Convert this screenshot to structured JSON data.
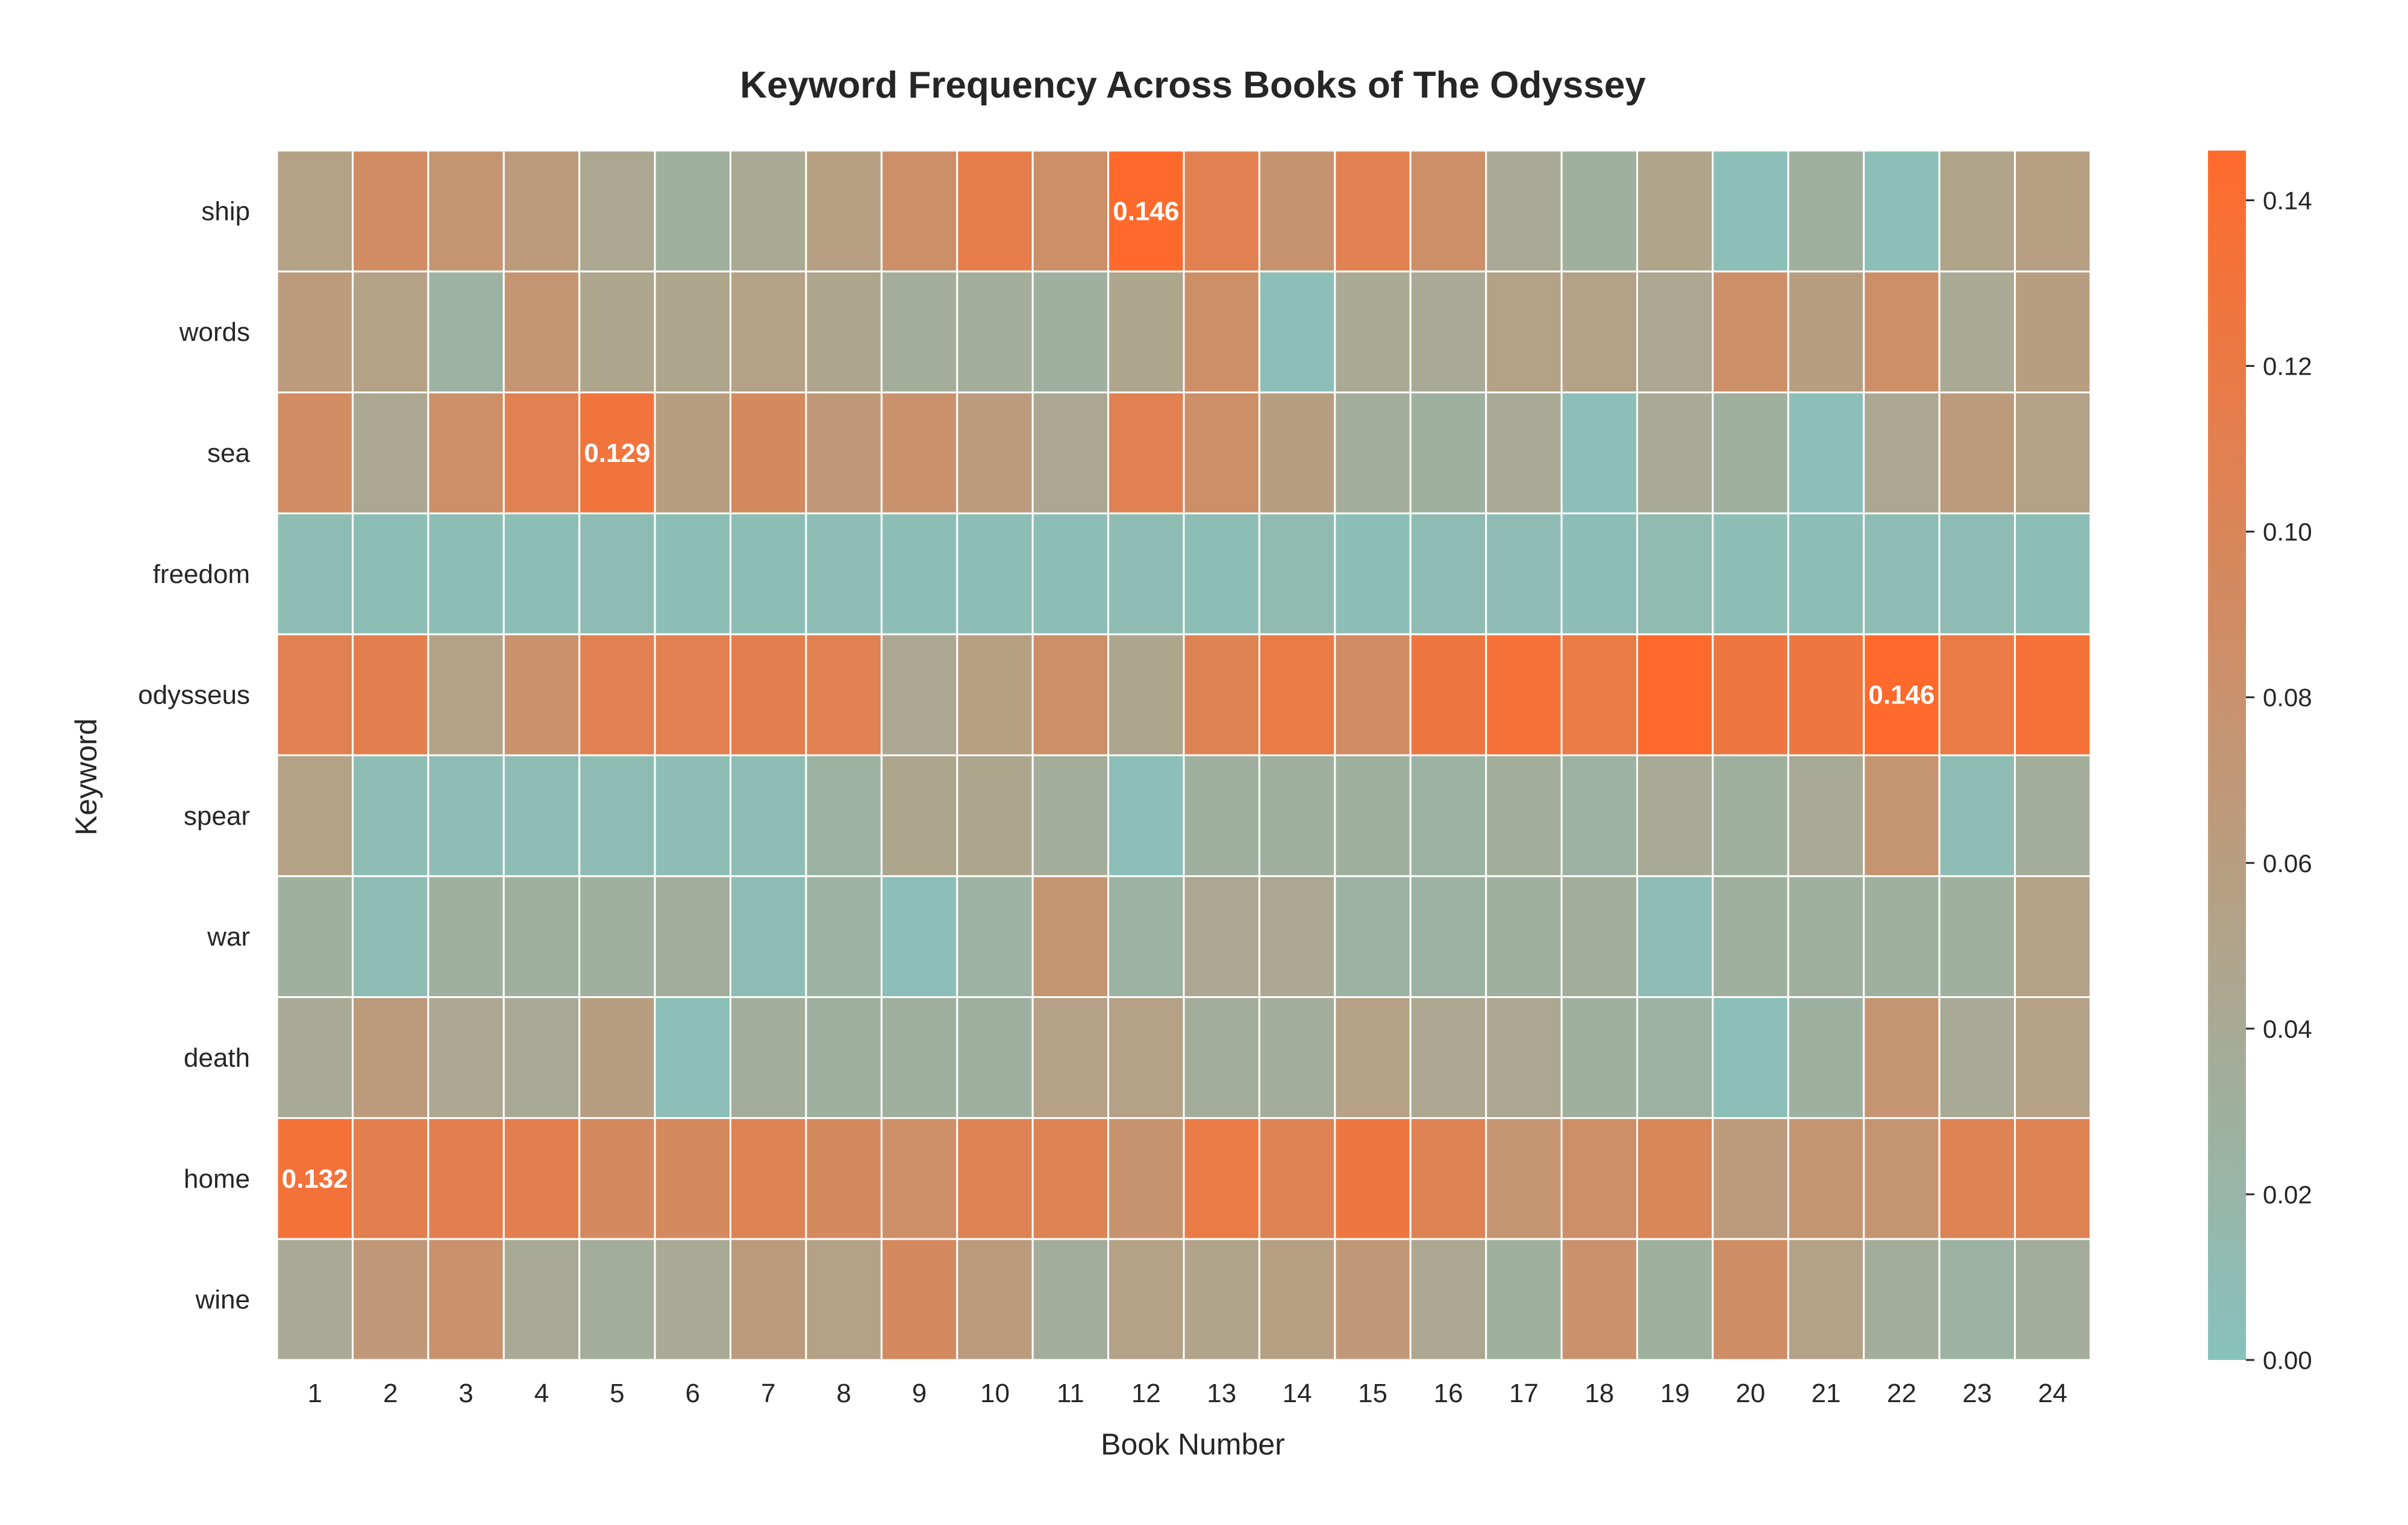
{
  "chart_data": {
    "type": "heatmap",
    "title": "Keyword Frequency Across Books of The Odyssey",
    "xlabel": "Book Number",
    "ylabel": "Keyword",
    "x_categories": [
      "1",
      "2",
      "3",
      "4",
      "5",
      "6",
      "7",
      "8",
      "9",
      "10",
      "11",
      "12",
      "13",
      "14",
      "15",
      "16",
      "17",
      "18",
      "19",
      "20",
      "21",
      "22",
      "23",
      "24"
    ],
    "y_categories": [
      "ship",
      "words",
      "sea",
      "freedom",
      "odysseus",
      "spear",
      "war",
      "death",
      "home",
      "wine"
    ],
    "values": [
      [
        0.055,
        0.09,
        0.075,
        0.065,
        0.045,
        0.03,
        0.042,
        0.058,
        0.085,
        0.115,
        0.085,
        0.146,
        0.11,
        0.078,
        0.11,
        0.085,
        0.04,
        0.03,
        0.05,
        0.005,
        0.03,
        0.005,
        0.05,
        0.058
      ],
      [
        0.065,
        0.055,
        0.025,
        0.075,
        0.048,
        0.048,
        0.055,
        0.048,
        0.035,
        0.035,
        0.028,
        0.048,
        0.085,
        0.005,
        0.042,
        0.04,
        0.055,
        0.055,
        0.045,
        0.085,
        0.06,
        0.085,
        0.042,
        0.06
      ],
      [
        0.09,
        0.045,
        0.085,
        0.11,
        0.129,
        0.06,
        0.095,
        0.07,
        0.08,
        0.065,
        0.045,
        0.11,
        0.085,
        0.06,
        0.035,
        0.028,
        0.04,
        0.005,
        0.04,
        0.03,
        0.005,
        0.045,
        0.065,
        0.055
      ],
      [
        0.008,
        0.006,
        0.006,
        0.006,
        0.01,
        0.006,
        0.006,
        0.008,
        0.006,
        0.006,
        0.006,
        0.01,
        0.006,
        0.012,
        0.006,
        0.01,
        0.01,
        0.006,
        0.012,
        0.006,
        0.006,
        0.008,
        0.01,
        0.006
      ],
      [
        0.11,
        0.112,
        0.055,
        0.08,
        0.11,
        0.11,
        0.112,
        0.11,
        0.045,
        0.058,
        0.085,
        0.048,
        0.105,
        0.12,
        0.09,
        0.125,
        0.135,
        0.12,
        0.146,
        0.125,
        0.125,
        0.146,
        0.12,
        0.135
      ],
      [
        0.055,
        0.008,
        0.008,
        0.008,
        0.01,
        0.008,
        0.008,
        0.025,
        0.048,
        0.048,
        0.035,
        0.005,
        0.03,
        0.03,
        0.03,
        0.025,
        0.035,
        0.025,
        0.04,
        0.03,
        0.04,
        0.075,
        0.008,
        0.035
      ],
      [
        0.03,
        0.008,
        0.03,
        0.03,
        0.03,
        0.035,
        0.008,
        0.025,
        0.005,
        0.025,
        0.075,
        0.025,
        0.045,
        0.045,
        0.025,
        0.025,
        0.03,
        0.035,
        0.008,
        0.03,
        0.03,
        0.03,
        0.03,
        0.055
      ],
      [
        0.04,
        0.065,
        0.045,
        0.04,
        0.06,
        0.005,
        0.035,
        0.028,
        0.03,
        0.028,
        0.055,
        0.055,
        0.035,
        0.035,
        0.055,
        0.045,
        0.045,
        0.03,
        0.025,
        0.005,
        0.028,
        0.075,
        0.04,
        0.055
      ],
      [
        0.132,
        0.112,
        0.112,
        0.112,
        0.095,
        0.095,
        0.105,
        0.095,
        0.085,
        0.105,
        0.105,
        0.078,
        0.12,
        0.105,
        0.125,
        0.105,
        0.075,
        0.085,
        0.1,
        0.065,
        0.075,
        0.075,
        0.105,
        0.105
      ],
      [
        0.04,
        0.07,
        0.08,
        0.04,
        0.035,
        0.04,
        0.065,
        0.055,
        0.095,
        0.065,
        0.035,
        0.055,
        0.05,
        0.058,
        0.07,
        0.045,
        0.03,
        0.08,
        0.03,
        0.088,
        0.055,
        0.035,
        0.025,
        0.035
      ]
    ],
    "annotations": [
      {
        "row": "ship",
        "col": "12",
        "text": "0.146"
      },
      {
        "row": "sea",
        "col": "5",
        "text": "0.129"
      },
      {
        "row": "odysseus",
        "col": "22",
        "text": "0.146"
      },
      {
        "row": "home",
        "col": "1",
        "text": "0.132"
      }
    ],
    "colorbar": {
      "min": 0.0,
      "max": 0.146,
      "ticks": [
        "0.00",
        "0.02",
        "0.04",
        "0.06",
        "0.08",
        "0.10",
        "0.12",
        "0.14"
      ],
      "colors": [
        "#87c2bc",
        "#ff6a2c"
      ]
    },
    "grid": true,
    "legend_position": "right"
  }
}
